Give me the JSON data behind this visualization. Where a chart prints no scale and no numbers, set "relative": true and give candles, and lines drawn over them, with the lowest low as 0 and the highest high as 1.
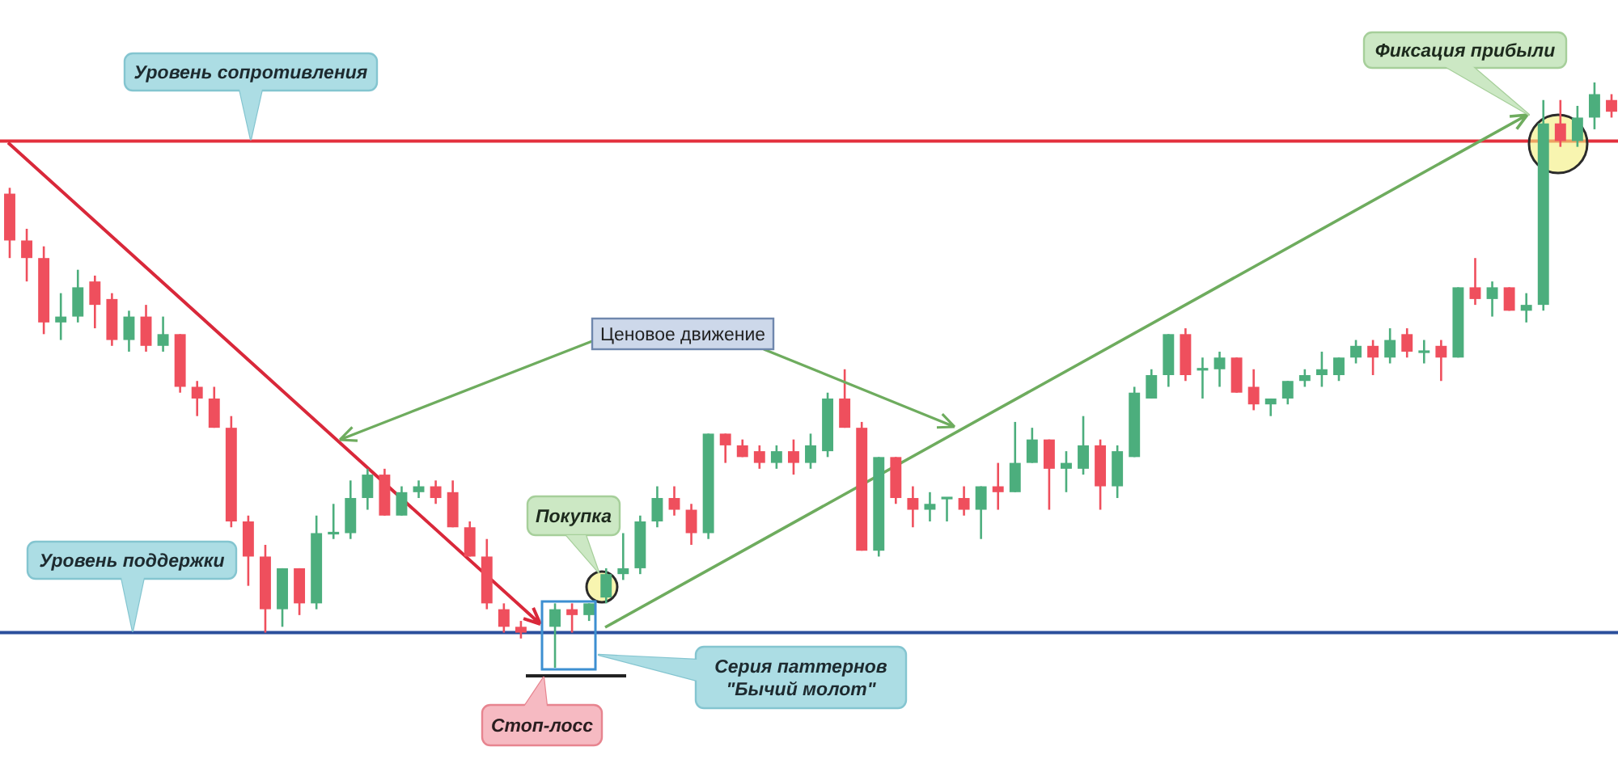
{
  "chart_data": {
    "type": "candlestick",
    "relative": true,
    "categories": [
      null,
      null,
      null,
      null,
      null,
      null,
      null,
      null,
      null,
      null,
      null,
      null,
      null,
      null,
      null,
      null,
      null,
      null,
      null,
      null,
      null,
      null,
      null,
      null,
      null,
      null,
      null,
      null,
      null,
      null,
      null,
      null,
      null,
      null,
      null,
      null,
      null,
      null,
      null,
      null,
      null,
      null,
      null,
      null,
      null,
      null,
      null,
      null,
      null,
      null,
      null,
      null,
      null,
      null,
      null,
      null,
      null,
      null,
      null,
      null,
      null,
      null,
      null,
      null,
      null,
      null,
      null,
      null,
      null,
      null,
      null,
      null,
      null,
      null,
      null,
      null,
      null,
      null,
      null,
      null,
      null,
      null,
      null,
      null,
      null,
      null,
      null,
      null,
      null,
      null,
      null,
      null,
      null,
      null,
      null
    ],
    "ohlc": [
      [
        0.81,
        0.82,
        0.7,
        0.73
      ],
      [
        0.73,
        0.75,
        0.66,
        0.7
      ],
      [
        0.7,
        0.72,
        0.57,
        0.59
      ],
      [
        0.59,
        0.64,
        0.56,
        0.6
      ],
      [
        0.6,
        0.68,
        0.59,
        0.65
      ],
      [
        0.66,
        0.67,
        0.58,
        0.62
      ],
      [
        0.63,
        0.64,
        0.55,
        0.56
      ],
      [
        0.56,
        0.61,
        0.54,
        0.6
      ],
      [
        0.6,
        0.62,
        0.54,
        0.55
      ],
      [
        0.55,
        0.6,
        0.54,
        0.57
      ],
      [
        0.57,
        0.57,
        0.47,
        0.48
      ],
      [
        0.48,
        0.49,
        0.43,
        0.46
      ],
      [
        0.46,
        0.48,
        0.41,
        0.41
      ],
      [
        0.41,
        0.43,
        0.24,
        0.25
      ],
      [
        0.25,
        0.26,
        0.14,
        0.19
      ],
      [
        0.19,
        0.21,
        0.06,
        0.1
      ],
      [
        0.1,
        0.17,
        0.07,
        0.17
      ],
      [
        0.17,
        0.17,
        0.09,
        0.11
      ],
      [
        0.11,
        0.26,
        0.1,
        0.23
      ],
      [
        0.23,
        0.28,
        0.22,
        0.23
      ],
      [
        0.23,
        0.32,
        0.22,
        0.29
      ],
      [
        0.29,
        0.34,
        0.27,
        0.33
      ],
      [
        0.33,
        0.34,
        0.26,
        0.26
      ],
      [
        0.26,
        0.31,
        0.26,
        0.3
      ],
      [
        0.3,
        0.32,
        0.29,
        0.31
      ],
      [
        0.31,
        0.32,
        0.28,
        0.29
      ],
      [
        0.3,
        0.32,
        0.24,
        0.24
      ],
      [
        0.24,
        0.25,
        0.19,
        0.19
      ],
      [
        0.19,
        0.22,
        0.1,
        0.11
      ],
      [
        0.1,
        0.11,
        0.06,
        0.07
      ],
      [
        0.07,
        0.08,
        0.05,
        0.06
      ],
      null,
      [
        0.07,
        0.11,
        0,
        0.1
      ],
      [
        0.1,
        0.11,
        0.06,
        0.09
      ],
      [
        0.09,
        0.11,
        0.08,
        0.11
      ],
      [
        0.12,
        0.17,
        0.11,
        0.16
      ],
      [
        0.16,
        0.23,
        0.15,
        0.17
      ],
      [
        0.17,
        0.26,
        0.16,
        0.25
      ],
      [
        0.25,
        0.31,
        0.24,
        0.29
      ],
      [
        0.29,
        0.31,
        0.26,
        0.27
      ],
      [
        0.27,
        0.28,
        0.21,
        0.23
      ],
      [
        0.23,
        0.4,
        0.22,
        0.4
      ],
      [
        0.4,
        0.4,
        0.35,
        0.38
      ],
      [
        0.38,
        0.39,
        0.36,
        0.36
      ],
      [
        0.37,
        0.38,
        0.34,
        0.35
      ],
      [
        0.35,
        0.38,
        0.34,
        0.37
      ],
      [
        0.37,
        0.39,
        0.33,
        0.35
      ],
      [
        0.35,
        0.4,
        0.34,
        0.38
      ],
      [
        0.37,
        0.47,
        0.36,
        0.46
      ],
      [
        0.46,
        0.51,
        0.41,
        0.41
      ],
      [
        0.41,
        0.42,
        0.2,
        0.2
      ],
      [
        0.2,
        0.36,
        0.19,
        0.36
      ],
      [
        0.36,
        0.36,
        0.28,
        0.29
      ],
      [
        0.29,
        0.31,
        0.24,
        0.27
      ],
      [
        0.27,
        0.3,
        0.25,
        0.28
      ],
      [
        0.29,
        0.29,
        0.25,
        0.29
      ],
      [
        0.29,
        0.31,
        0.26,
        0.27
      ],
      [
        0.27,
        0.31,
        0.22,
        0.31
      ],
      [
        0.31,
        0.35,
        0.27,
        0.3
      ],
      [
        0.3,
        0.42,
        0.3,
        0.35
      ],
      [
        0.35,
        0.41,
        0.35,
        0.39
      ],
      [
        0.39,
        0.39,
        0.27,
        0.34
      ],
      [
        0.34,
        0.37,
        0.3,
        0.35
      ],
      [
        0.34,
        0.43,
        0.33,
        0.38
      ],
      [
        0.38,
        0.39,
        0.27,
        0.31
      ],
      [
        0.31,
        0.38,
        0.29,
        0.37
      ],
      [
        0.36,
        0.48,
        0.36,
        0.47
      ],
      [
        0.46,
        0.51,
        0.46,
        0.5
      ],
      [
        0.5,
        0.57,
        0.48,
        0.57
      ],
      [
        0.57,
        0.58,
        0.49,
        0.5
      ],
      [
        0.51,
        0.53,
        0.46,
        0.51
      ],
      [
        0.51,
        0.54,
        0.48,
        0.53
      ],
      [
        0.53,
        0.53,
        0.47,
        0.47
      ],
      [
        0.48,
        0.51,
        0.44,
        0.45
      ],
      [
        0.45,
        0.46,
        0.43,
        0.46
      ],
      [
        0.46,
        0.49,
        0.45,
        0.49
      ],
      [
        0.49,
        0.51,
        0.48,
        0.5
      ],
      [
        0.5,
        0.54,
        0.48,
        0.51
      ],
      [
        0.5,
        0.53,
        0.49,
        0.53
      ],
      [
        0.53,
        0.56,
        0.52,
        0.55
      ],
      [
        0.55,
        0.56,
        0.5,
        0.53
      ],
      [
        0.53,
        0.58,
        0.52,
        0.56
      ],
      [
        0.57,
        0.58,
        0.53,
        0.54
      ],
      [
        0.54,
        0.56,
        0.52,
        0.54
      ],
      [
        0.55,
        0.56,
        0.49,
        0.53
      ],
      [
        0.53,
        0.65,
        0.53,
        0.65
      ],
      [
        0.65,
        0.7,
        0.62,
        0.63
      ],
      [
        0.63,
        0.66,
        0.6,
        0.65
      ],
      [
        0.65,
        0.65,
        0.61,
        0.61
      ],
      [
        0.61,
        0.64,
        0.59,
        0.62
      ],
      [
        0.62,
        0.97,
        0.61,
        0.93
      ],
      [
        0.93,
        0.97,
        0.89,
        0.9
      ],
      [
        0.9,
        0.96,
        0.89,
        0.94
      ],
      [
        0.94,
        1,
        0.92,
        0.98
      ],
      [
        0.97,
        0.98,
        0.94,
        0.95
      ]
    ],
    "colors": [
      "#ef4f5d",
      "#ef4f5d",
      "#ef4f5d",
      "#4cae7d",
      "#4cae7d",
      "#ef4f5d",
      "#ef4f5d",
      "#4cae7d",
      "#ef4f5d",
      "#4cae7d",
      "#ef4f5d",
      "#ef4f5d",
      "#ef4f5d",
      "#ef4f5d",
      "#ef4f5d",
      "#ef4f5d",
      "#4cae7d",
      "#ef4f5d",
      "#4cae7d",
      "#4cae7d",
      "#4cae7d",
      "#4cae7d",
      "#ef4f5d",
      "#4cae7d",
      "#4cae7d",
      "#ef4f5d",
      "#ef4f5d",
      "#ef4f5d",
      "#ef4f5d",
      "#ef4f5d",
      "#ef4f5d",
      null,
      "#4cae7d",
      "#ef4f5d",
      "#4cae7d",
      "#4cae7d",
      "#4cae7d",
      "#4cae7d",
      "#4cae7d",
      "#ef4f5d",
      "#ef4f5d",
      "#4cae7d",
      "#ef4f5d",
      "#ef4f5d",
      "#ef4f5d",
      "#4cae7d",
      "#ef4f5d",
      "#4cae7d",
      "#4cae7d",
      "#ef4f5d",
      "#ef4f5d",
      "#4cae7d",
      "#ef4f5d",
      "#ef4f5d",
      "#4cae7d",
      "#4cae7d",
      "#ef4f5d",
      "#4cae7d",
      "#ef4f5d",
      "#4cae7d",
      "#4cae7d",
      "#ef4f5d",
      "#4cae7d",
      "#4cae7d",
      "#ef4f5d",
      "#4cae7d",
      "#4cae7d",
      "#4cae7d",
      "#4cae7d",
      "#ef4f5d",
      "#4cae7d",
      "#4cae7d",
      "#ef4f5d",
      "#ef4f5d",
      "#4cae7d",
      "#4cae7d",
      "#4cae7d",
      "#4cae7d",
      "#4cae7d",
      "#4cae7d",
      "#ef4f5d",
      "#4cae7d",
      "#ef4f5d",
      "#4cae7d",
      "#ef4f5d",
      "#4cae7d",
      "#ef4f5d",
      "#4cae7d",
      "#ef4f5d",
      "#4cae7d",
      "#4cae7d",
      "#ef4f5d",
      "#4cae7d",
      "#4cae7d",
      "#ef4f5d"
    ],
    "ref_lines": [
      {
        "axis": "y",
        "value": 0.9,
        "label": "Уровень сопротивления",
        "color": "#e3303d"
      },
      {
        "axis": "y",
        "value": 0.06,
        "label": "Уровень поддержки",
        "color": "#2b4f9c"
      }
    ],
    "annotations": [
      "Ценовое движение",
      "Покупка",
      "Серия паттернов\n\"Бычий молот\"",
      "Стоп-лосс",
      "Фиксация прибыли"
    ]
  }
}
